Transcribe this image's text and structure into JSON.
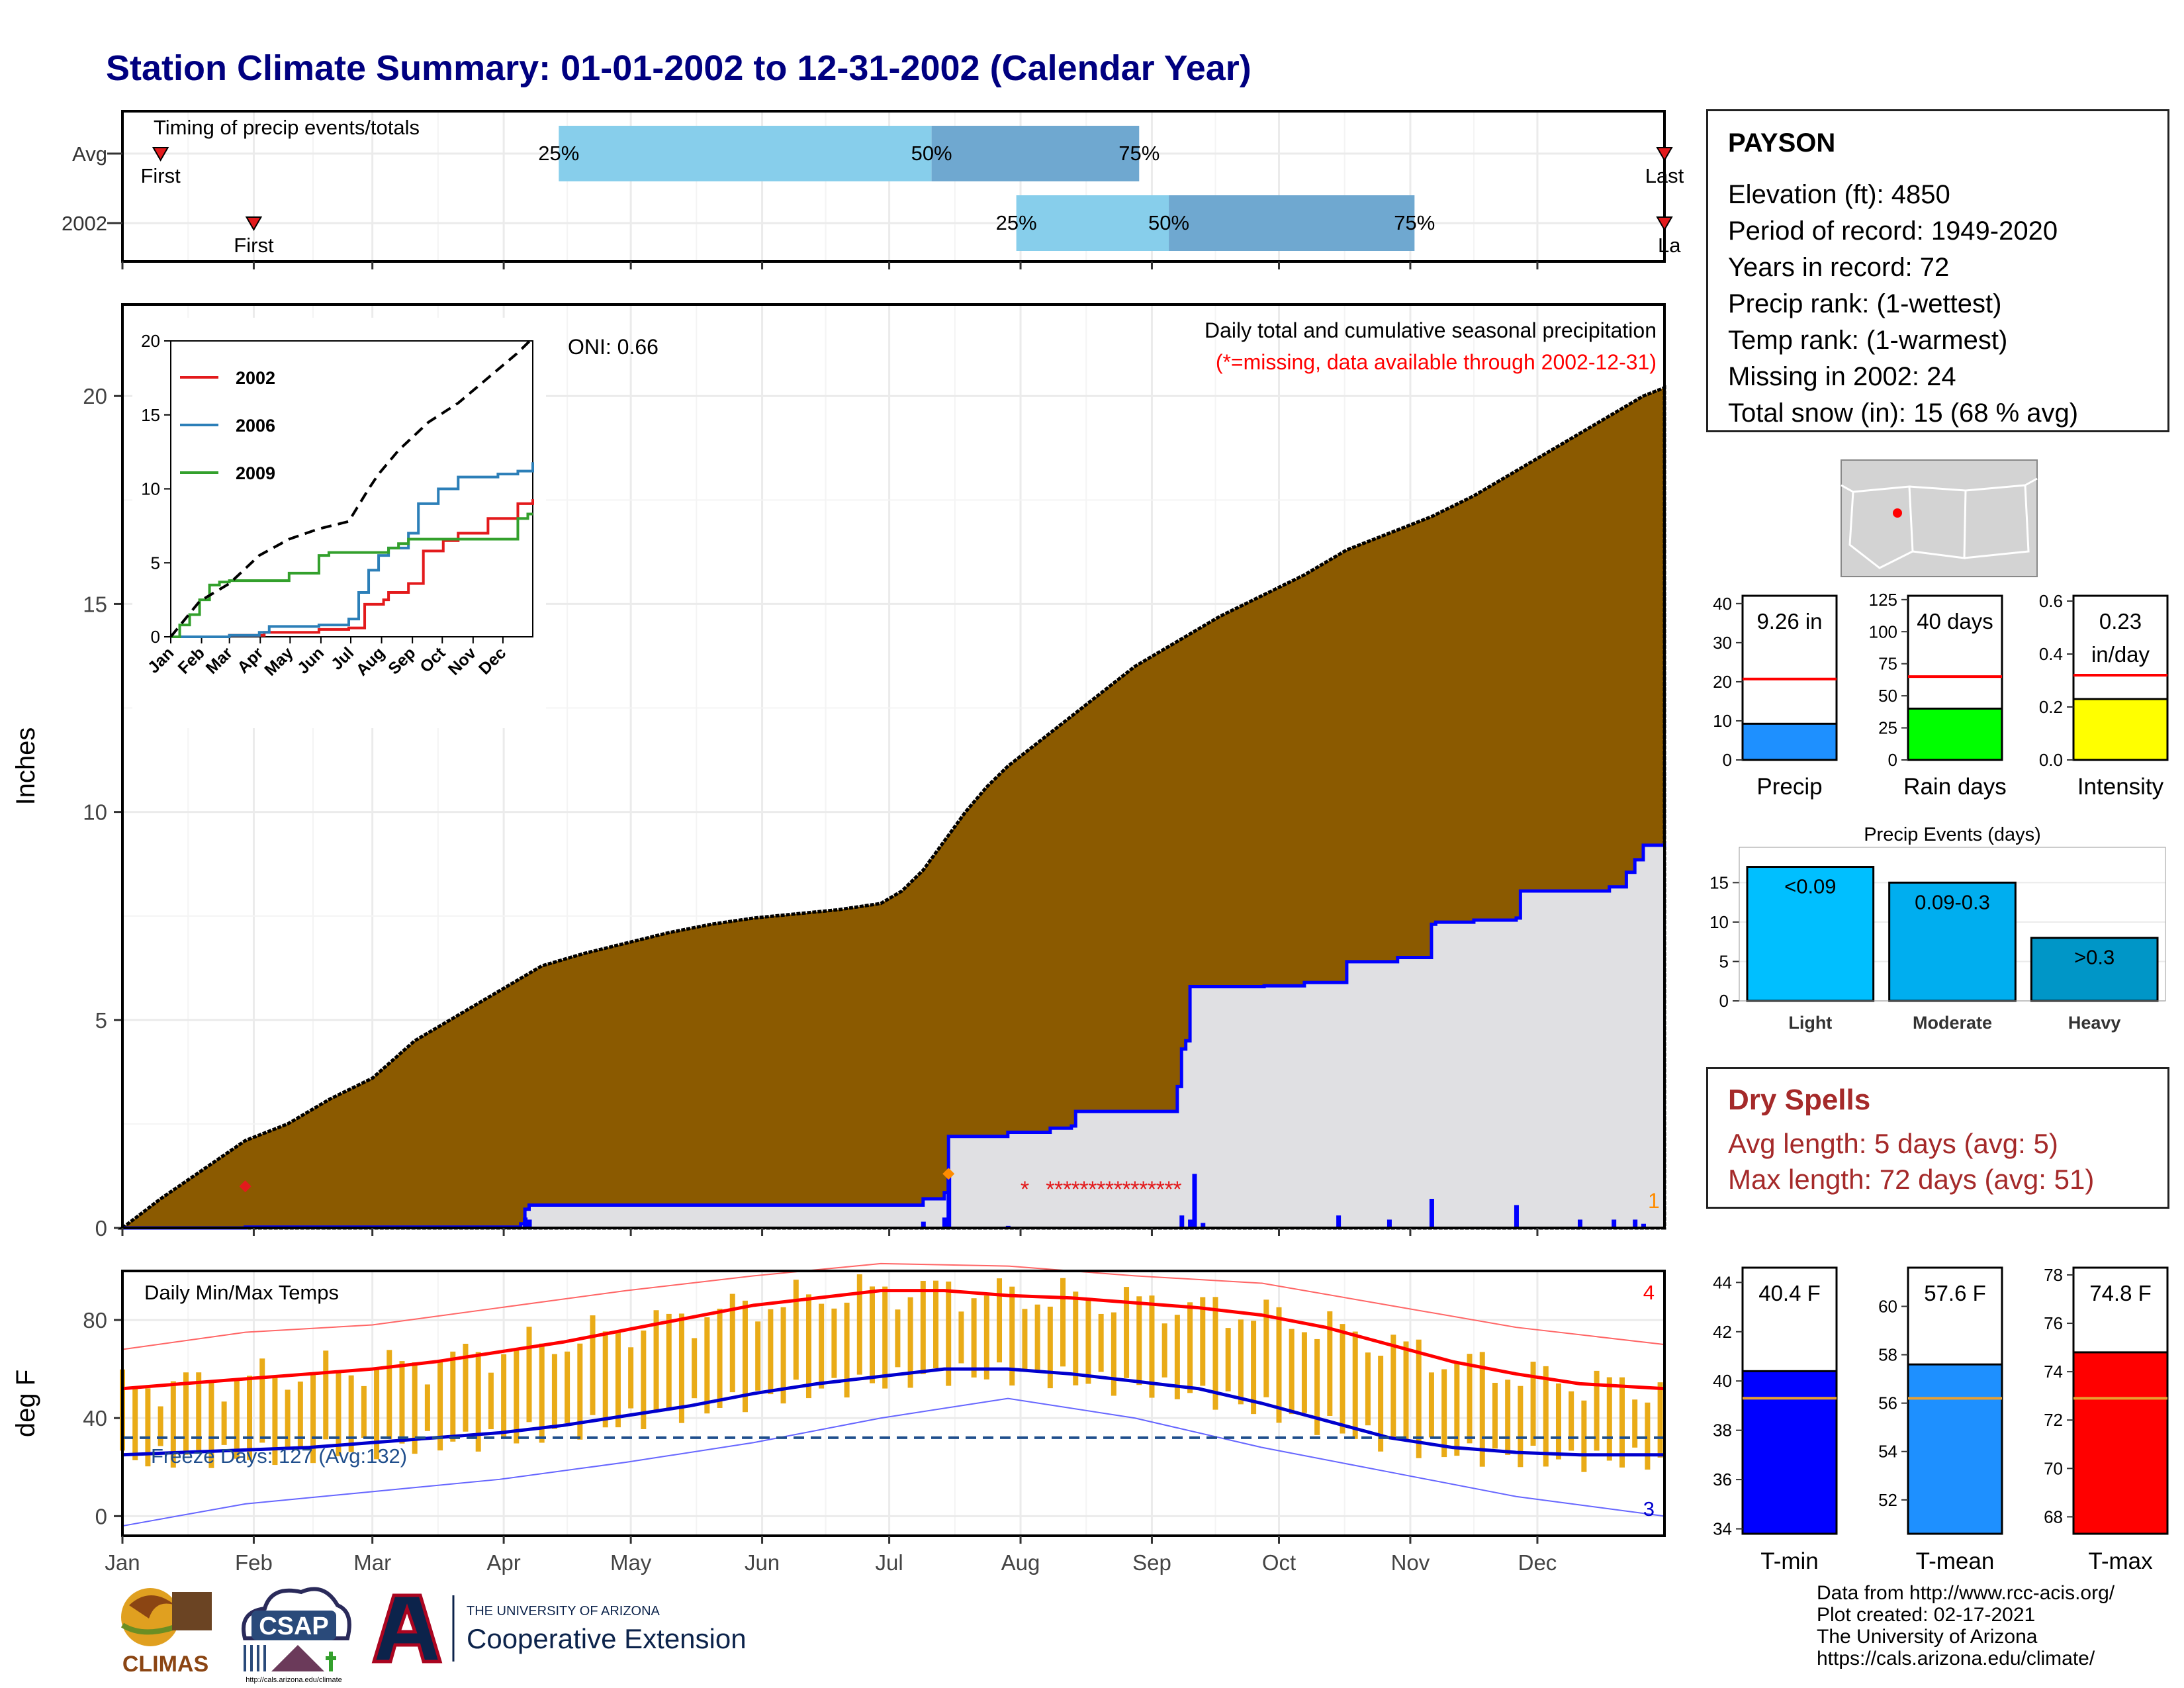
{
  "title": "Station Climate Summary: 01-01-2002 to 12-31-2002 (Calendar Year)",
  "months": [
    "Jan",
    "Feb",
    "Mar",
    "Apr",
    "May",
    "Jun",
    "Jul",
    "Aug",
    "Sep",
    "Oct",
    "Nov",
    "Dec"
  ],
  "station": {
    "name": "PAYSON",
    "lines": [
      "Elevation (ft): 4850",
      "Period of record: 1949-2020",
      "Years in record: 72",
      "Precip rank:  (1-wettest)",
      "Temp rank:  (1-warmest)",
      "Missing in 2002: 24",
      "Total snow (in): 15 (68 % avg)"
    ]
  },
  "dry_spells": {
    "title": "Dry Spells",
    "avg_length": "Avg length: 5 days (avg: 5)",
    "max_length": "Max length: 72 days (avg: 51)"
  },
  "footer": [
    "Data from http://www.rcc-acis.org/",
    "Plot created: 02-17-2021",
    "The University of Arizona",
    "https://cals.arizona.edu/climate/"
  ],
  "logos": {
    "climas": "CLIMAS",
    "csap": "CSAP",
    "csap_url": "http://cals.arizona.edu/climate",
    "ua_line1": "THE UNIVERSITY OF ARIZONA",
    "ua_line2": "Cooperative Extension"
  },
  "chart_data": [
    {
      "id": "timing",
      "type": "bar",
      "title": "Timing of precip events/totals",
      "rows": [
        {
          "label": "Avg",
          "first": "Jan 10",
          "last": "Dec 31",
          "q25": "Apr 14",
          "q50": "Jul 11",
          "q75": "Aug 29"
        },
        {
          "label": "2002",
          "first": "Feb 1",
          "last": "Dec 31",
          "q25": "Jul 31",
          "q50": "Sep 5",
          "q75": "Nov 2"
        }
      ],
      "row_labels": [
        "Avg",
        "2002"
      ],
      "point_labels": [
        "First",
        "Last",
        "First",
        "La"
      ],
      "pct_labels": [
        "25%",
        "50%",
        "75%"
      ],
      "colors": {
        "light": "#87ceeb",
        "dark": "#6fa8d0",
        "marker": "#e31a1c"
      }
    },
    {
      "id": "precip_main",
      "type": "area",
      "subtitle": "Daily total and cumulative seasonal precipitation",
      "note": "(*=missing, data available through 2002-12-31)",
      "oni": "ONI: 0.66",
      "ylabel": "Inches",
      "ylim": [
        0,
        22.2
      ],
      "yticks": [
        0,
        5,
        10,
        15,
        20
      ],
      "xlim": [
        1,
        365
      ],
      "avg_cumulative": {
        "x": [
          1,
          10,
          20,
          30,
          40,
          50,
          60,
          70,
          80,
          90,
          100,
          110,
          120,
          130,
          140,
          150,
          160,
          170,
          180,
          185,
          190,
          195,
          200,
          205,
          210,
          220,
          230,
          240,
          250,
          260,
          270,
          280,
          290,
          300,
          310,
          320,
          330,
          340,
          350,
          360,
          365
        ],
        "y": [
          0,
          0.7,
          1.4,
          2.1,
          2.5,
          3.1,
          3.6,
          4.5,
          5.1,
          5.7,
          6.3,
          6.6,
          6.85,
          7.1,
          7.3,
          7.45,
          7.55,
          7.65,
          7.8,
          8.1,
          8.6,
          9.3,
          10.0,
          10.6,
          11.1,
          11.9,
          12.7,
          13.5,
          14.1,
          14.7,
          15.2,
          15.7,
          16.3,
          16.7,
          17.1,
          17.6,
          18.2,
          18.8,
          19.4,
          20.0,
          20.2
        ]
      },
      "obs_cumulative": {
        "x": [
          1,
          30,
          60,
          95,
          96,
          97,
          120,
          150,
          180,
          190,
          195,
          196,
          200,
          210,
          220,
          225,
          226,
          240,
          250,
          251,
          252,
          253,
          270,
          270.5,
          280,
          290,
          301,
          302,
          310,
          311,
          320,
          330,
          331,
          345,
          352,
          356,
          358,
          360,
          365
        ],
        "y": [
          0,
          0.02,
          0.02,
          0.1,
          0.45,
          0.55,
          0.55,
          0.55,
          0.55,
          0.7,
          0.85,
          2.2,
          2.2,
          2.3,
          2.4,
          2.45,
          2.8,
          2.8,
          3.4,
          4.3,
          4.5,
          5.8,
          5.8,
          5.82,
          5.9,
          6.4,
          6.4,
          6.5,
          7.3,
          7.35,
          7.4,
          7.45,
          8.1,
          8.1,
          8.2,
          8.55,
          8.85,
          9.2,
          9.26
        ]
      },
      "daily_bars": {
        "x": [
          96,
          97,
          190,
          195,
          196,
          210,
          251,
          253,
          254,
          256,
          288,
          300,
          310,
          330,
          345,
          353,
          358,
          360
        ],
        "y": [
          0.25,
          0.2,
          0.15,
          0.25,
          1.35,
          0.05,
          0.3,
          0.2,
          1.3,
          0.12,
          0.3,
          0.2,
          0.7,
          0.55,
          0.2,
          0.2,
          0.2,
          0.1
        ]
      },
      "missing_x": [
        214,
        220,
        222,
        224,
        226,
        228,
        230,
        232,
        234,
        236,
        238,
        240,
        242,
        244,
        246,
        248,
        250
      ],
      "markers": [
        {
          "x": 30,
          "y": 1.0,
          "color": "#e31a1c"
        },
        {
          "x": 196,
          "y": 1.3,
          "color": "#ff8c00"
        }
      ],
      "count_label": "1",
      "colors": {
        "area": "#8b5a00",
        "obs_line": "#0000ff",
        "obs_fill": "#e0e0e3",
        "missing": "#e31a1c"
      }
    },
    {
      "id": "inset",
      "type": "line",
      "ylim": [
        0,
        20
      ],
      "yticks": [
        0,
        5,
        10,
        15,
        20
      ],
      "xticks": [
        "Jan",
        "Feb",
        "Mar",
        "Apr",
        "May",
        "Jun",
        "Jul",
        "Aug",
        "Sep",
        "Oct",
        "Nov",
        "Dec"
      ],
      "series": [
        {
          "name": "2002",
          "color": "#e31a1c",
          "x": [
            1,
            60,
            95,
            150,
            180,
            196,
            215,
            220,
            240,
            255,
            275,
            290,
            320,
            350,
            365
          ],
          "y": [
            0,
            0.1,
            0.3,
            0.5,
            0.6,
            2.2,
            2.5,
            3.0,
            3.6,
            5.8,
            6.5,
            7.0,
            8.0,
            9.0,
            9.3
          ]
        },
        {
          "name": "2006",
          "color": "#2c7fb8",
          "x": [
            1,
            60,
            90,
            100,
            150,
            180,
            190,
            200,
            210,
            220,
            240,
            250,
            270,
            290,
            330,
            350,
            365
          ],
          "y": [
            0,
            0.1,
            0.3,
            0.7,
            0.8,
            1.2,
            3.0,
            4.5,
            5.5,
            6.0,
            7.0,
            9.0,
            10.0,
            10.8,
            11.0,
            11.2,
            11.8
          ]
        },
        {
          "name": "2009",
          "color": "#33a02c",
          "x": [
            1,
            10,
            20,
            30,
            40,
            50,
            60,
            90,
            120,
            150,
            160,
            200,
            220,
            230,
            240,
            250,
            300,
            350,
            360,
            365
          ],
          "y": [
            0,
            0.8,
            1.5,
            2.5,
            3.5,
            3.7,
            3.8,
            3.8,
            4.3,
            5.5,
            5.7,
            5.7,
            6.0,
            6.3,
            6.6,
            6.6,
            6.6,
            8.0,
            8.3,
            8.3
          ]
        }
      ],
      "avg_series": {
        "x": [
          1,
          30,
          60,
          90,
          120,
          150,
          180,
          200,
          210,
          230,
          260,
          290,
          320,
          350,
          365
        ],
        "y": [
          0,
          2.4,
          3.6,
          5.5,
          6.6,
          7.3,
          7.8,
          10.0,
          11.0,
          12.6,
          14.5,
          15.8,
          17.5,
          19.2,
          20.2
        ]
      }
    },
    {
      "id": "temps",
      "type": "line",
      "title": "Daily Min/Max Temps",
      "ylabel": "deg F",
      "ylim": [
        -8,
        100
      ],
      "yticks": [
        0,
        40,
        80
      ],
      "freeze_label": "Freeze Days: 127 (Avg:132)",
      "freeze_line": 32,
      "count_top": "4",
      "count_bottom": "3",
      "avg_max": {
        "x": [
          1,
          15,
          30,
          45,
          60,
          75,
          90,
          105,
          120,
          135,
          150,
          165,
          180,
          195,
          210,
          225,
          240,
          255,
          270,
          285,
          300,
          315,
          330,
          345,
          365
        ],
        "y": [
          52,
          54,
          56,
          58,
          60,
          63,
          67,
          71,
          76,
          81,
          86,
          89,
          92,
          92,
          90,
          89,
          87,
          85,
          82,
          77,
          70,
          63,
          58,
          54,
          52
        ]
      },
      "avg_min": {
        "x": [
          1,
          15,
          30,
          45,
          60,
          75,
          90,
          105,
          120,
          135,
          150,
          165,
          180,
          195,
          210,
          225,
          240,
          255,
          270,
          285,
          300,
          315,
          330,
          345,
          365
        ],
        "y": [
          25,
          26,
          27,
          28,
          30,
          32,
          34,
          37,
          41,
          45,
          50,
          54,
          57,
          60,
          60,
          58,
          55,
          52,
          46,
          39,
          32,
          28,
          26,
          25,
          25
        ]
      },
      "record_max": {
        "x": [
          1,
          30,
          60,
          90,
          120,
          150,
          180,
          210,
          240,
          270,
          300,
          330,
          365
        ],
        "y": [
          68,
          75,
          78,
          85,
          92,
          98,
          103,
          102,
          98,
          95,
          86,
          77,
          70
        ]
      },
      "record_min": {
        "x": [
          1,
          30,
          60,
          90,
          120,
          150,
          180,
          210,
          240,
          270,
          300,
          330,
          365
        ],
        "y": [
          -4,
          5,
          10,
          15,
          22,
          30,
          40,
          48,
          40,
          28,
          18,
          8,
          0
        ]
      },
      "colors": {
        "bars": "#e9ab17",
        "avg_max": "#ff0000",
        "avg_min": "#0000cd",
        "rec_max": "#ff6666",
        "rec_min": "#6666ff",
        "freeze": "#1f4e8c"
      }
    },
    {
      "id": "precip_small",
      "type": "bar",
      "panels": [
        {
          "label": "Precip",
          "value": 9.26,
          "avg": 20.7,
          "text": "9.26 in",
          "ylim": [
            0,
            42
          ],
          "yticks": [
            0,
            10,
            20,
            30,
            40
          ],
          "color": "#1e90ff"
        },
        {
          "label": "Rain days",
          "value": 40,
          "avg": 65,
          "text": "40 days",
          "ylim": [
            0,
            128
          ],
          "yticks": [
            0,
            25,
            50,
            75,
            100,
            125
          ],
          "color": "#00ff00"
        },
        {
          "label": "Intensity",
          "value": 0.23,
          "avg": 0.32,
          "text": "0.23",
          "text2": "in/day",
          "ylim": [
            0,
            0.62
          ],
          "yticks": [
            "0.0",
            "0.2",
            "0.4",
            "0.6"
          ],
          "color": "#ffff00"
        }
      ]
    },
    {
      "id": "events",
      "type": "bar",
      "title": "Precip Events (days)",
      "categories": [
        "Light",
        "Moderate",
        "Heavy"
      ],
      "values": [
        17,
        15,
        8
      ],
      "labels": [
        "<0.09",
        "0.09-0.3",
        ">0.3"
      ],
      "ylim": [
        0,
        17.8
      ],
      "yticks": [
        0,
        5,
        10,
        15
      ],
      "colors": [
        "#00bfff",
        "#00aeef",
        "#0096c7"
      ]
    },
    {
      "id": "temp_small",
      "type": "bar",
      "panels": [
        {
          "label": "T-min",
          "value": 40.4,
          "avg": 39.3,
          "text": "40.4 F",
          "ylim": [
            33.8,
            44.6
          ],
          "yticks": [
            34,
            36,
            38,
            40,
            42,
            44
          ],
          "color": "#0000ff"
        },
        {
          "label": "T-mean",
          "value": 57.6,
          "avg": 56.2,
          "text": "57.6 F",
          "ylim": [
            50.6,
            61.6
          ],
          "yticks": [
            52,
            54,
            56,
            58,
            60
          ],
          "color": "#1e90ff"
        },
        {
          "label": "T-max",
          "value": 74.8,
          "avg": 72.9,
          "text": "74.8 F",
          "ylim": [
            67.3,
            78.3
          ],
          "yticks": [
            68,
            70,
            72,
            74,
            76,
            78
          ],
          "color": "#ff0000"
        }
      ]
    }
  ]
}
